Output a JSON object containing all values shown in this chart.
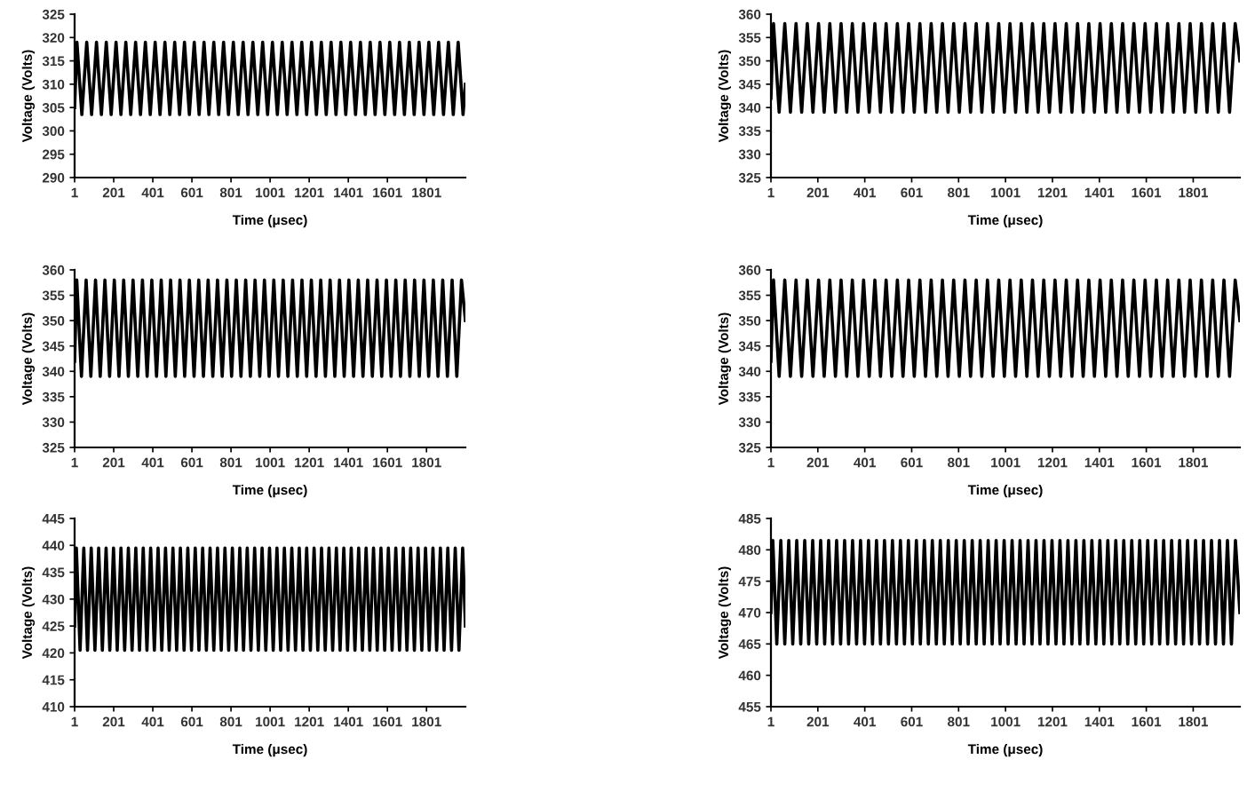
{
  "chart_data": [
    {
      "type": "line",
      "xlabel": "Time (μsec)",
      "ylabel": "Voltage (Volts)",
      "xlim": [
        1,
        2000
      ],
      "xticks": [
        1,
        201,
        401,
        601,
        801,
        1001,
        1201,
        1401,
        1601,
        1801
      ],
      "ylim": [
        290,
        325
      ],
      "yticks": [
        290,
        295,
        300,
        305,
        310,
        315,
        320,
        325
      ],
      "grid": false,
      "legend": false,
      "series": [
        {
          "color": "#000000",
          "x": [
            1,
            13,
            38,
            63,
            88,
            113,
            138,
            163,
            188,
            213,
            238,
            263,
            288,
            313,
            338,
            363,
            388,
            413,
            438,
            463,
            488,
            513,
            538,
            563,
            588,
            613,
            638,
            663,
            688,
            713,
            738,
            763,
            788,
            813,
            838,
            863,
            888,
            913,
            938,
            963,
            988,
            1013,
            1038,
            1063,
            1088,
            1113,
            1138,
            1163,
            1188,
            1213,
            1238,
            1263,
            1288,
            1313,
            1338,
            1363,
            1388,
            1413,
            1438,
            1463,
            1488,
            1513,
            1538,
            1563,
            1588,
            1613,
            1638,
            1663,
            1688,
            1713,
            1738,
            1763,
            1788,
            1813,
            1838,
            1863,
            1888,
            1913,
            1938,
            1963,
            1988,
            2000
          ],
          "values": [
            305,
            319,
            303.5,
            319,
            303.5,
            319,
            303.5,
            319,
            303.5,
            319,
            303.5,
            319,
            303.5,
            319,
            303.5,
            319,
            303.5,
            319,
            303.5,
            319,
            303.5,
            319,
            303.5,
            319,
            303.5,
            319,
            303.5,
            319,
            303.5,
            319,
            303.5,
            319,
            303.5,
            319,
            303.5,
            319,
            303.5,
            319,
            303.5,
            319,
            303.5,
            319,
            303.5,
            319,
            303.5,
            319,
            303.5,
            319,
            303.5,
            319,
            303.5,
            319,
            303.5,
            319,
            303.5,
            319,
            303.5,
            319,
            303.5,
            319,
            303.5,
            319,
            303.5,
            319,
            303.5,
            319,
            303.5,
            319,
            303.5,
            319,
            303.5,
            319,
            303.5,
            319,
            303.5,
            319,
            303.5,
            319,
            303.5,
            319,
            303.5,
            310
          ]
        }
      ]
    },
    {
      "type": "line",
      "xlabel": "Time (μsec)",
      "ylabel": "Voltage (Volts)",
      "xlim": [
        1,
        2000
      ],
      "xticks": [
        1,
        201,
        401,
        601,
        801,
        1001,
        1201,
        1401,
        1601,
        1801
      ],
      "ylim": [
        325,
        360
      ],
      "yticks": [
        325,
        330,
        335,
        340,
        345,
        350,
        355,
        360
      ],
      "grid": false,
      "legend": false,
      "series": [
        {
          "color": "#000000",
          "x": [
            1,
            12,
            36,
            60,
            84,
            108,
            132,
            156,
            180,
            204,
            228,
            252,
            276,
            300,
            324,
            348,
            372,
            396,
            420,
            444,
            468,
            492,
            516,
            540,
            564,
            588,
            612,
            636,
            660,
            684,
            708,
            732,
            756,
            780,
            804,
            828,
            852,
            876,
            900,
            924,
            948,
            972,
            996,
            1020,
            1044,
            1068,
            1092,
            1116,
            1140,
            1164,
            1188,
            1212,
            1236,
            1260,
            1284,
            1308,
            1332,
            1356,
            1380,
            1404,
            1428,
            1452,
            1476,
            1500,
            1524,
            1548,
            1572,
            1596,
            1620,
            1644,
            1668,
            1692,
            1716,
            1740,
            1764,
            1788,
            1812,
            1836,
            1860,
            1884,
            1908,
            1932,
            1956,
            1980,
            2000
          ],
          "values": [
            342,
            358,
            339,
            358,
            339,
            358,
            339,
            358,
            339,
            358,
            339,
            358,
            339,
            358,
            339,
            358,
            339,
            358,
            339,
            358,
            339,
            358,
            339,
            358,
            339,
            358,
            339,
            358,
            339,
            358,
            339,
            358,
            339,
            358,
            339,
            358,
            339,
            358,
            339,
            358,
            339,
            358,
            339,
            358,
            339,
            358,
            339,
            358,
            339,
            358,
            339,
            358,
            339,
            358,
            339,
            358,
            339,
            358,
            339,
            358,
            339,
            358,
            339,
            358,
            339,
            358,
            339,
            358,
            339,
            358,
            339,
            358,
            339,
            358,
            339,
            358,
            339,
            358,
            339,
            358,
            339,
            358,
            339,
            358,
            350
          ]
        }
      ]
    },
    {
      "type": "line",
      "xlabel": "Time (μsec)",
      "ylabel": "Voltage (Volts)",
      "xlim": [
        1,
        2000
      ],
      "xticks": [
        1,
        201,
        401,
        601,
        801,
        1001,
        1201,
        1401,
        1601,
        1801
      ],
      "ylim": [
        325,
        360
      ],
      "yticks": [
        325,
        330,
        335,
        340,
        345,
        350,
        355,
        360
      ],
      "grid": false,
      "legend": false,
      "series": [
        {
          "color": "#000000",
          "x": [
            1,
            12,
            36,
            60,
            84,
            108,
            132,
            156,
            180,
            204,
            228,
            252,
            276,
            300,
            324,
            348,
            372,
            396,
            420,
            444,
            468,
            492,
            516,
            540,
            564,
            588,
            612,
            636,
            660,
            684,
            708,
            732,
            756,
            780,
            804,
            828,
            852,
            876,
            900,
            924,
            948,
            972,
            996,
            1020,
            1044,
            1068,
            1092,
            1116,
            1140,
            1164,
            1188,
            1212,
            1236,
            1260,
            1284,
            1308,
            1332,
            1356,
            1380,
            1404,
            1428,
            1452,
            1476,
            1500,
            1524,
            1548,
            1572,
            1596,
            1620,
            1644,
            1668,
            1692,
            1716,
            1740,
            1764,
            1788,
            1812,
            1836,
            1860,
            1884,
            1908,
            1932,
            1956,
            1980,
            2000
          ],
          "values": [
            342,
            358,
            339,
            358,
            339,
            358,
            339,
            358,
            339,
            358,
            339,
            358,
            339,
            358,
            339,
            358,
            339,
            358,
            339,
            358,
            339,
            358,
            339,
            358,
            339,
            358,
            339,
            358,
            339,
            358,
            339,
            358,
            339,
            358,
            339,
            358,
            339,
            358,
            339,
            358,
            339,
            358,
            339,
            358,
            339,
            358,
            339,
            358,
            339,
            358,
            339,
            358,
            339,
            358,
            339,
            358,
            339,
            358,
            339,
            358,
            339,
            358,
            339,
            358,
            339,
            358,
            339,
            358,
            339,
            358,
            339,
            358,
            339,
            358,
            339,
            358,
            339,
            358,
            339,
            358,
            339,
            358,
            339,
            358,
            350
          ]
        }
      ]
    },
    {
      "type": "line",
      "xlabel": "Time (μsec)",
      "ylabel": "Voltage (Volts)",
      "xlim": [
        1,
        2000
      ],
      "xticks": [
        1,
        201,
        401,
        601,
        801,
        1001,
        1201,
        1401,
        1601,
        1801
      ],
      "ylim": [
        325,
        360
      ],
      "yticks": [
        325,
        330,
        335,
        340,
        345,
        350,
        355,
        360
      ],
      "grid": false,
      "legend": false,
      "series": [
        {
          "color": "#000000",
          "x": [
            1,
            12,
            36,
            60,
            84,
            108,
            132,
            156,
            180,
            204,
            228,
            252,
            276,
            300,
            324,
            348,
            372,
            396,
            420,
            444,
            468,
            492,
            516,
            540,
            564,
            588,
            612,
            636,
            660,
            684,
            708,
            732,
            756,
            780,
            804,
            828,
            852,
            876,
            900,
            924,
            948,
            972,
            996,
            1020,
            1044,
            1068,
            1092,
            1116,
            1140,
            1164,
            1188,
            1212,
            1236,
            1260,
            1284,
            1308,
            1332,
            1356,
            1380,
            1404,
            1428,
            1452,
            1476,
            1500,
            1524,
            1548,
            1572,
            1596,
            1620,
            1644,
            1668,
            1692,
            1716,
            1740,
            1764,
            1788,
            1812,
            1836,
            1860,
            1884,
            1908,
            1932,
            1956,
            1980,
            2000
          ],
          "values": [
            342,
            358,
            339,
            358,
            339,
            358,
            339,
            358,
            339,
            358,
            339,
            358,
            339,
            358,
            339,
            358,
            339,
            358,
            339,
            358,
            339,
            358,
            339,
            358,
            339,
            358,
            339,
            358,
            339,
            358,
            339,
            358,
            339,
            358,
            339,
            358,
            339,
            358,
            339,
            358,
            339,
            358,
            339,
            358,
            339,
            358,
            339,
            358,
            339,
            358,
            339,
            358,
            339,
            358,
            339,
            358,
            339,
            358,
            339,
            358,
            339,
            358,
            339,
            358,
            339,
            358,
            339,
            358,
            339,
            358,
            339,
            358,
            339,
            358,
            339,
            358,
            339,
            358,
            339,
            358,
            339,
            358,
            339,
            358,
            350
          ]
        }
      ]
    },
    {
      "type": "line",
      "xlabel": "Time (μsec)",
      "ylabel": "Voltage (Volts)",
      "xlim": [
        1,
        2000
      ],
      "xticks": [
        1,
        201,
        401,
        601,
        801,
        1001,
        1201,
        1401,
        1601,
        1801
      ],
      "ylim": [
        410,
        445
      ],
      "yticks": [
        410,
        415,
        420,
        425,
        430,
        435,
        440,
        445
      ],
      "grid": false,
      "legend": false,
      "series": [
        {
          "color": "#000000",
          "x": [
            1,
            10,
            29,
            48,
            67,
            86,
            105,
            124,
            143,
            162,
            181,
            200,
            219,
            238,
            257,
            276,
            295,
            314,
            333,
            352,
            371,
            390,
            409,
            428,
            447,
            466,
            485,
            504,
            523,
            542,
            561,
            580,
            599,
            618,
            637,
            656,
            675,
            694,
            713,
            732,
            751,
            770,
            789,
            808,
            827,
            846,
            865,
            884,
            903,
            922,
            941,
            960,
            979,
            998,
            1017,
            1036,
            1055,
            1074,
            1093,
            1112,
            1131,
            1150,
            1169,
            1188,
            1207,
            1226,
            1245,
            1264,
            1283,
            1302,
            1321,
            1340,
            1359,
            1378,
            1397,
            1416,
            1435,
            1454,
            1473,
            1492,
            1511,
            1530,
            1549,
            1568,
            1587,
            1606,
            1625,
            1644,
            1663,
            1682,
            1701,
            1720,
            1739,
            1758,
            1777,
            1796,
            1815,
            1834,
            1853,
            1872,
            1891,
            1910,
            1929,
            1948,
            1967,
            1986,
            2000
          ],
          "values": [
            425,
            439.5,
            420.5,
            439.5,
            420.5,
            439.5,
            420.5,
            439.5,
            420.5,
            439.5,
            420.5,
            439.5,
            420.5,
            439.5,
            420.5,
            439.5,
            420.5,
            439.5,
            420.5,
            439.5,
            420.5,
            439.5,
            420.5,
            439.5,
            420.5,
            439.5,
            420.5,
            439.5,
            420.5,
            439.5,
            420.5,
            439.5,
            420.5,
            439.5,
            420.5,
            439.5,
            420.5,
            439.5,
            420.5,
            439.5,
            420.5,
            439.5,
            420.5,
            439.5,
            420.5,
            439.5,
            420.5,
            439.5,
            420.5,
            439.5,
            420.5,
            439.5,
            420.5,
            439.5,
            420.5,
            439.5,
            420.5,
            439.5,
            420.5,
            439.5,
            420.5,
            439.5,
            420.5,
            439.5,
            420.5,
            439.5,
            420.5,
            439.5,
            420.5,
            439.5,
            420.5,
            439.5,
            420.5,
            439.5,
            420.5,
            439.5,
            420.5,
            439.5,
            420.5,
            439.5,
            420.5,
            439.5,
            420.5,
            439.5,
            420.5,
            439.5,
            420.5,
            439.5,
            420.5,
            439.5,
            420.5,
            439.5,
            420.5,
            439.5,
            420.5,
            439.5,
            420.5,
            439.5,
            420.5,
            439.5,
            420.5,
            439.5,
            420.5,
            439.5,
            420.5,
            439.5,
            425
          ]
        }
      ]
    },
    {
      "type": "line",
      "xlabel": "Time (μsec)",
      "ylabel": "Voltage (Volts)",
      "xlim": [
        1,
        2000
      ],
      "xticks": [
        1,
        201,
        401,
        601,
        801,
        1001,
        1201,
        1401,
        1601,
        1801
      ],
      "ylim": [
        455,
        485
      ],
      "yticks": [
        455,
        460,
        465,
        470,
        475,
        480,
        485
      ],
      "grid": false,
      "legend": false,
      "series": [
        {
          "color": "#000000",
          "x": [
            1,
            9,
            26,
            43,
            60,
            77,
            94,
            111,
            128,
            145,
            162,
            179,
            196,
            213,
            230,
            247,
            264,
            281,
            298,
            315,
            332,
            349,
            366,
            383,
            400,
            417,
            434,
            451,
            468,
            485,
            502,
            519,
            536,
            553,
            570,
            587,
            604,
            621,
            638,
            655,
            672,
            689,
            706,
            723,
            740,
            757,
            774,
            791,
            808,
            825,
            842,
            859,
            876,
            893,
            910,
            927,
            944,
            961,
            978,
            995,
            1012,
            1029,
            1046,
            1063,
            1080,
            1097,
            1114,
            1131,
            1148,
            1165,
            1182,
            1199,
            1216,
            1233,
            1250,
            1267,
            1284,
            1301,
            1318,
            1335,
            1352,
            1369,
            1386,
            1403,
            1420,
            1437,
            1454,
            1471,
            1488,
            1505,
            1522,
            1539,
            1556,
            1573,
            1590,
            1607,
            1624,
            1641,
            1658,
            1675,
            1692,
            1709,
            1726,
            1743,
            1760,
            1777,
            1794,
            1811,
            1828,
            1845,
            1862,
            1879,
            1896,
            1913,
            1930,
            1947,
            1964,
            1981,
            2000
          ],
          "values": [
            470,
            481.5,
            465,
            481.5,
            465,
            481.5,
            465,
            481.5,
            465,
            481.5,
            465,
            481.5,
            465,
            481.5,
            465,
            481.5,
            465,
            481.5,
            465,
            481.5,
            465,
            481.5,
            465,
            481.5,
            465,
            481.5,
            465,
            481.5,
            465,
            481.5,
            465,
            481.5,
            465,
            481.5,
            465,
            481.5,
            465,
            481.5,
            465,
            481.5,
            465,
            481.5,
            465,
            481.5,
            465,
            481.5,
            465,
            481.5,
            465,
            481.5,
            465,
            481.5,
            465,
            481.5,
            465,
            481.5,
            465,
            481.5,
            465,
            481.5,
            465,
            481.5,
            465,
            481.5,
            465,
            481.5,
            465,
            481.5,
            465,
            481.5,
            465,
            481.5,
            465,
            481.5,
            465,
            481.5,
            465,
            481.5,
            465,
            481.5,
            465,
            481.5,
            465,
            481.5,
            465,
            481.5,
            465,
            481.5,
            465,
            481.5,
            465,
            481.5,
            465,
            481.5,
            465,
            481.5,
            465,
            481.5,
            465,
            481.5,
            465,
            481.5,
            465,
            481.5,
            465,
            481.5,
            465,
            481.5,
            465,
            481.5,
            465,
            481.5,
            465,
            481.5,
            465,
            481.5,
            465,
            481.5,
            470
          ]
        }
      ]
    }
  ]
}
